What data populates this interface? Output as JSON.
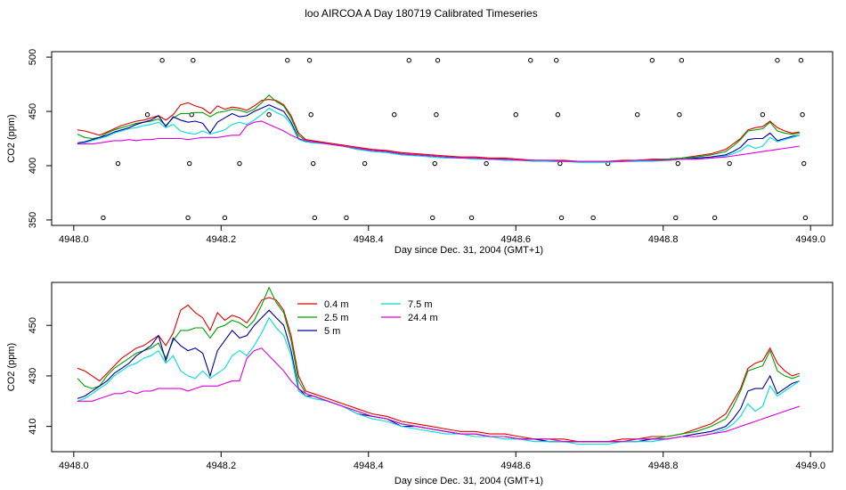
{
  "title": "loo AIRCOA A  Day 180719  Calibrated Timeseries",
  "colors": {
    "0.4 m": "#e00000",
    "2.5 m": "#00a000",
    "5 m": "#0000a0",
    "7.5 m": "#00dddd",
    "24.4 m": "#dd00dd",
    "flags": "#000000"
  },
  "chart_data": [
    {
      "type": "line",
      "xlabel": "Day since Dec. 31, 2004 (GMT+1)",
      "ylabel": "CO2 (ppm)",
      "xlim": [
        4947.97,
        4949.03
      ],
      "ylim": [
        345,
        505
      ],
      "xticks": [
        4948.0,
        4948.2,
        4948.4,
        4948.6,
        4948.8,
        4949.0
      ],
      "xtick_labels": [
        "4948.0",
        "4948.2",
        "4948.4",
        "4948.6",
        "4948.8",
        "4949.0"
      ],
      "yticks": [
        350,
        400,
        450,
        500
      ],
      "ytick_labels": [
        "350",
        "400",
        "450",
        "500"
      ],
      "flag_points": [
        {
          "x": 4948.04,
          "y": 352
        },
        {
          "x": 4948.06,
          "y": 402
        },
        {
          "x": 4948.1,
          "y": 447
        },
        {
          "x": 4948.12,
          "y": 497
        },
        {
          "x": 4948.155,
          "y": 352
        },
        {
          "x": 4948.157,
          "y": 402
        },
        {
          "x": 4948.16,
          "y": 447
        },
        {
          "x": 4948.162,
          "y": 497
        },
        {
          "x": 4948.205,
          "y": 352
        },
        {
          "x": 4948.225,
          "y": 402
        },
        {
          "x": 4948.265,
          "y": 447
        },
        {
          "x": 4948.29,
          "y": 497
        },
        {
          "x": 4948.32,
          "y": 497
        },
        {
          "x": 4948.322,
          "y": 447
        },
        {
          "x": 4948.325,
          "y": 402
        },
        {
          "x": 4948.327,
          "y": 352
        },
        {
          "x": 4948.37,
          "y": 352
        },
        {
          "x": 4948.395,
          "y": 402
        },
        {
          "x": 4948.435,
          "y": 447
        },
        {
          "x": 4948.455,
          "y": 497
        },
        {
          "x": 4948.487,
          "y": 352
        },
        {
          "x": 4948.49,
          "y": 402
        },
        {
          "x": 4948.492,
          "y": 447
        },
        {
          "x": 4948.494,
          "y": 497
        },
        {
          "x": 4948.54,
          "y": 352
        },
        {
          "x": 4948.56,
          "y": 402
        },
        {
          "x": 4948.6,
          "y": 447
        },
        {
          "x": 4948.62,
          "y": 497
        },
        {
          "x": 4948.655,
          "y": 497
        },
        {
          "x": 4948.657,
          "y": 447
        },
        {
          "x": 4948.66,
          "y": 402
        },
        {
          "x": 4948.662,
          "y": 352
        },
        {
          "x": 4948.705,
          "y": 352
        },
        {
          "x": 4948.725,
          "y": 402
        },
        {
          "x": 4948.765,
          "y": 447
        },
        {
          "x": 4948.785,
          "y": 497
        },
        {
          "x": 4948.817,
          "y": 352
        },
        {
          "x": 4948.82,
          "y": 402
        },
        {
          "x": 4948.822,
          "y": 447
        },
        {
          "x": 4948.825,
          "y": 497
        },
        {
          "x": 4948.87,
          "y": 352
        },
        {
          "x": 4948.89,
          "y": 402
        },
        {
          "x": 4948.935,
          "y": 447
        },
        {
          "x": 4948.955,
          "y": 497
        },
        {
          "x": 4948.987,
          "y": 497
        },
        {
          "x": 4948.989,
          "y": 447
        },
        {
          "x": 4948.991,
          "y": 402
        },
        {
          "x": 4948.993,
          "y": 352
        }
      ],
      "x": [
        4948.005,
        4948.015,
        4948.025,
        4948.035,
        4948.045,
        4948.055,
        4948.065,
        4948.075,
        4948.085,
        4948.095,
        4948.105,
        4948.115,
        4948.125,
        4948.135,
        4948.145,
        4948.155,
        4948.165,
        4948.175,
        4948.185,
        4948.195,
        4948.205,
        4948.215,
        4948.225,
        4948.235,
        4948.245,
        4948.255,
        4948.265,
        4948.275,
        4948.285,
        4948.295,
        4948.305,
        4948.315,
        4948.325,
        4948.345,
        4948.365,
        4948.385,
        4948.405,
        4948.425,
        4948.445,
        4948.465,
        4948.485,
        4948.505,
        4948.525,
        4948.545,
        4948.565,
        4948.585,
        4948.605,
        4948.625,
        4948.645,
        4948.665,
        4948.685,
        4948.705,
        4948.725,
        4948.745,
        4948.765,
        4948.785,
        4948.805,
        4948.825,
        4948.845,
        4948.865,
        4948.885,
        4948.895,
        4948.905,
        4948.915,
        4948.925,
        4948.935,
        4948.945,
        4948.955,
        4948.965,
        4948.975,
        4948.985
      ],
      "series": [
        {
          "name": "0.4 m",
          "values": [
            433,
            432,
            430,
            428,
            431,
            434,
            437,
            439,
            441,
            442,
            444,
            446,
            442,
            447,
            456,
            458,
            455,
            453,
            448,
            455,
            452,
            454,
            453,
            451,
            455,
            460,
            461,
            460,
            456,
            446,
            430,
            424,
            423,
            421,
            419,
            417,
            415,
            414,
            412,
            411,
            410,
            409,
            408,
            408,
            407,
            407,
            406,
            405,
            405,
            405,
            404,
            404,
            404,
            405,
            405,
            406,
            406,
            407,
            409,
            411,
            415,
            420,
            425,
            433,
            435,
            436,
            441,
            435,
            432,
            430,
            431
          ]
        },
        {
          "name": "2.5 m",
          "values": [
            429,
            426,
            425,
            426,
            430,
            433,
            435,
            437,
            439,
            440,
            441,
            443,
            437,
            444,
            448,
            448,
            449,
            449,
            445,
            449,
            450,
            452,
            451,
            449,
            452,
            458,
            465,
            459,
            455,
            444,
            428,
            423,
            422,
            420,
            418,
            416,
            414,
            413,
            411,
            410,
            409,
            408,
            407,
            407,
            406,
            406,
            405,
            405,
            404,
            404,
            404,
            404,
            404,
            404,
            405,
            405,
            406,
            407,
            408,
            410,
            413,
            418,
            424,
            432,
            433,
            434,
            440,
            432,
            430,
            429,
            430
          ]
        },
        {
          "name": "5 m",
          "values": [
            421,
            422,
            424,
            426,
            428,
            431,
            433,
            435,
            438,
            440,
            442,
            446,
            436,
            445,
            442,
            440,
            441,
            439,
            430,
            440,
            444,
            448,
            445,
            446,
            450,
            453,
            456,
            453,
            450,
            440,
            425,
            422,
            422,
            420,
            418,
            415,
            414,
            413,
            410,
            410,
            409,
            408,
            407,
            407,
            406,
            406,
            405,
            405,
            404,
            404,
            404,
            404,
            404,
            404,
            404,
            405,
            405,
            406,
            407,
            408,
            410,
            413,
            417,
            424,
            425,
            425,
            430,
            423,
            425,
            427,
            428
          ]
        },
        {
          "name": "7.5 m",
          "values": [
            420,
            421,
            423,
            425,
            427,
            430,
            432,
            434,
            435,
            437,
            438,
            440,
            435,
            438,
            432,
            430,
            429,
            432,
            429,
            431,
            433,
            438,
            440,
            438,
            442,
            447,
            453,
            449,
            446,
            438,
            424,
            422,
            421,
            420,
            418,
            415,
            413,
            412,
            410,
            409,
            408,
            407,
            407,
            406,
            406,
            405,
            405,
            404,
            404,
            404,
            403,
            403,
            403,
            404,
            404,
            404,
            405,
            406,
            406,
            407,
            409,
            411,
            414,
            419,
            416,
            418,
            426,
            422,
            424,
            426,
            428
          ]
        },
        {
          "name": "24.4 m",
          "values": [
            420,
            420,
            420,
            421,
            422,
            423,
            423,
            424,
            423,
            424,
            424,
            425,
            425,
            425,
            425,
            424,
            425,
            426,
            426,
            426,
            427,
            428,
            428,
            437,
            440,
            441,
            438,
            435,
            432,
            428,
            425,
            423,
            422,
            420,
            418,
            416,
            414,
            413,
            411,
            410,
            409,
            408,
            407,
            407,
            406,
            406,
            405,
            405,
            405,
            404,
            404,
            404,
            404,
            404,
            405,
            405,
            405,
            406,
            406,
            407,
            408,
            409,
            410,
            411,
            412,
            413,
            414,
            415,
            416,
            417,
            418
          ]
        }
      ]
    },
    {
      "type": "line",
      "xlabel": "Day since Dec. 31, 2004 (GMT+1)",
      "ylabel": "CO2 (ppm)",
      "xlim": [
        4947.97,
        4949.03
      ],
      "ylim": [
        400,
        467
      ],
      "xticks": [
        4948.0,
        4948.2,
        4948.4,
        4948.6,
        4948.8,
        4949.0
      ],
      "xtick_labels": [
        "4948.0",
        "4948.2",
        "4948.4",
        "4948.6",
        "4948.8",
        "4949.0"
      ],
      "yticks": [
        410,
        430,
        450
      ],
      "ytick_labels": [
        "410",
        "430",
        "450"
      ],
      "legend": {
        "placement": "top-left",
        "entries": [
          "0.4 m",
          "2.5 m",
          "5 m",
          "7.5 m",
          "24.4 m"
        ]
      },
      "uses_series_of_panel": 0
    }
  ]
}
